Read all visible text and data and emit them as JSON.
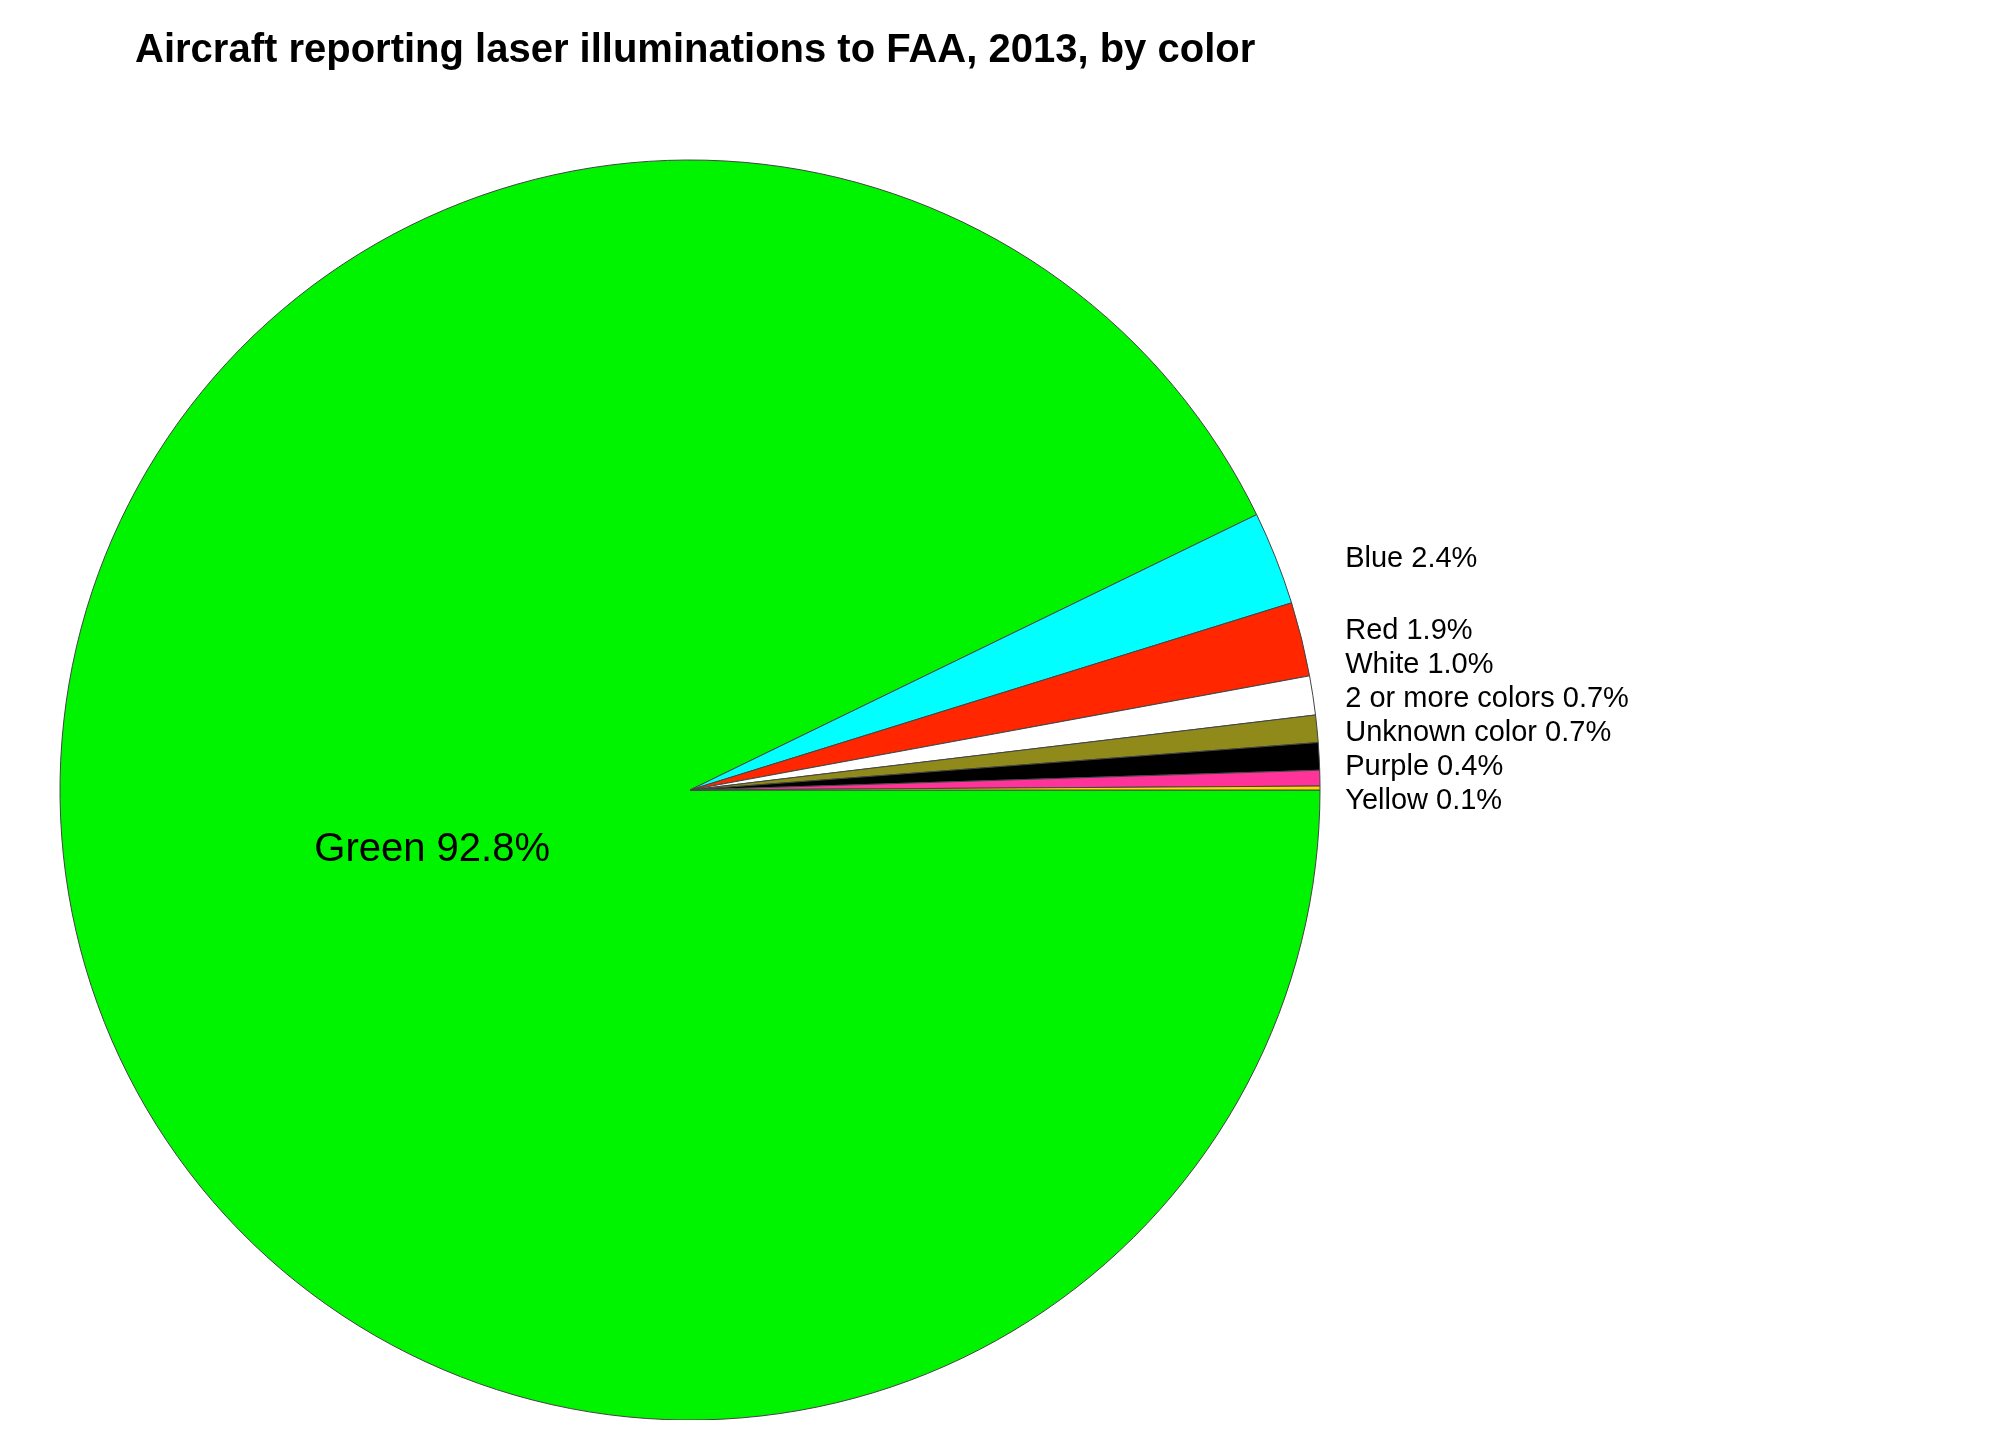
{
  "chart_data": {
    "type": "pie",
    "title": "Aircraft reporting laser illuminations to FAA, 2013, by color",
    "categories": [
      "Green",
      "Blue",
      "Red",
      "White",
      "2 or more colors",
      "Unknown color",
      "Purple",
      "Yellow"
    ],
    "values": [
      92.8,
      2.4,
      1.9,
      1.0,
      0.7,
      0.7,
      0.4,
      0.1
    ],
    "value_labels": [
      "92.8%",
      "2.4%",
      "1.9%",
      "1.0%",
      "0.7%",
      "0.7%",
      "0.4%",
      "0.1%"
    ],
    "colors": [
      "#00f400",
      "#00ffff",
      "#ff2600",
      "#ffffff",
      "#8f8a1a",
      "#000000",
      "#ff3399",
      "#ffd700"
    ]
  }
}
